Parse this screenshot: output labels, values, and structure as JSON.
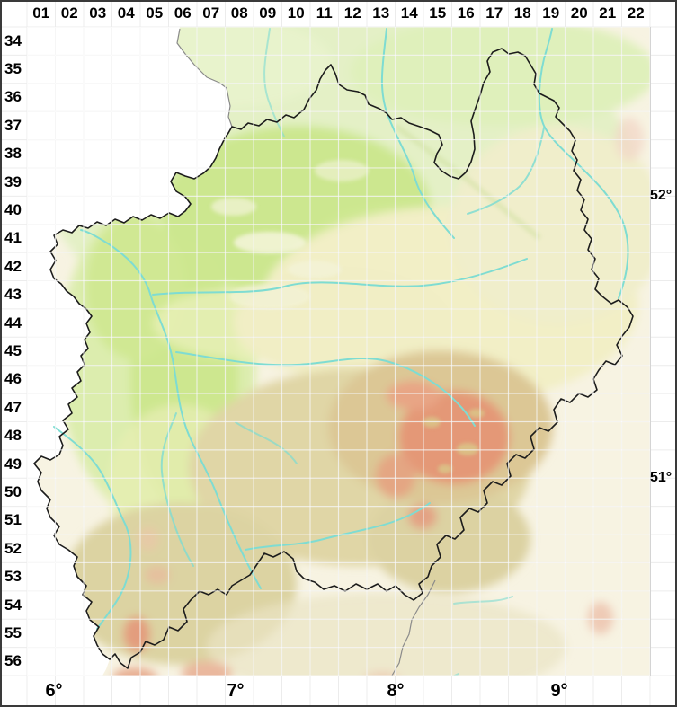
{
  "map": {
    "kind": "topographic-grid-map",
    "region_shown": "Nordrhein-Westfalen",
    "colors": {
      "frame": "#3a3a3a",
      "margin_background": "#ffffff",
      "label_text": "#000000",
      "grid_line_on_map": "rgba(255,255,255,0.55)",
      "grid_line_on_margin": "#dcdcdc",
      "terrain_base": "#f7f3e2",
      "terrain_pale_green": "#e3f0c4",
      "terrain_lowland_green": "#cce78f",
      "terrain_midland_cream": "#f2efc6",
      "terrain_upland_khaki": "#ded4a4",
      "terrain_highland_tan": "#dcc795",
      "terrain_peak_salmon": "#e49877",
      "river": "#7edcd2",
      "state_border": "#1c1c1c",
      "neighbor_border": "#8a8a8a",
      "outside_mask": "#ffffff"
    }
  },
  "grid": {
    "column_labels": [
      "01",
      "02",
      "03",
      "04",
      "05",
      "06",
      "07",
      "08",
      "09",
      "10",
      "11",
      "12",
      "13",
      "14",
      "15",
      "16",
      "17",
      "18",
      "19",
      "20",
      "21",
      "22"
    ],
    "row_labels": [
      "34",
      "35",
      "36",
      "37",
      "38",
      "39",
      "40",
      "41",
      "42",
      "43",
      "44",
      "45",
      "46",
      "47",
      "48",
      "49",
      "50",
      "51",
      "52",
      "53",
      "54",
      "55",
      "56"
    ]
  },
  "axes": {
    "longitude_labels": [
      "6°",
      "7°",
      "8°",
      "9°"
    ],
    "latitude_labels": [
      "52°",
      "51°"
    ]
  }
}
